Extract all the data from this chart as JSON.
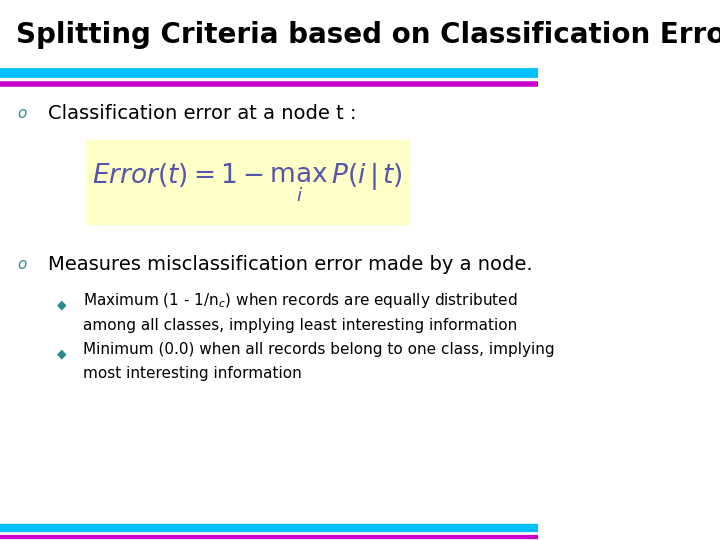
{
  "title": "Splitting Criteria based on Classification Error",
  "title_color": "#000000",
  "title_bg": "#ffffff",
  "title_fontsize": 20,
  "line1_color": "#00BFFF",
  "line2_color": "#CC00CC",
  "bg_color": "#ffffff",
  "bullet_color": "#2E8B8B",
  "bullet1_text": "Classification error at a node t :",
  "formula_bg": "#FFFFC8",
  "bullet2_text": "Measures misclassification error made by a node.",
  "sub_bullet1_line1": "Maximum (1 - 1/n",
  "sub_bullet1_sup": "c",
  "sub_bullet1_line2": ") when records are equally distributed",
  "sub_bullet1_line3": "among all classes, implying least interesting information",
  "sub_bullet2_line1": "Minimum (0.0) when all records belong to one class, implying",
  "sub_bullet2_line2": "most interesting information",
  "sub_bullet_color": "#2E8B8B",
  "text_color": "#000000",
  "bullet_marker": "o",
  "sub_bullet_marker": "◆",
  "formula_color": "#5555AA"
}
